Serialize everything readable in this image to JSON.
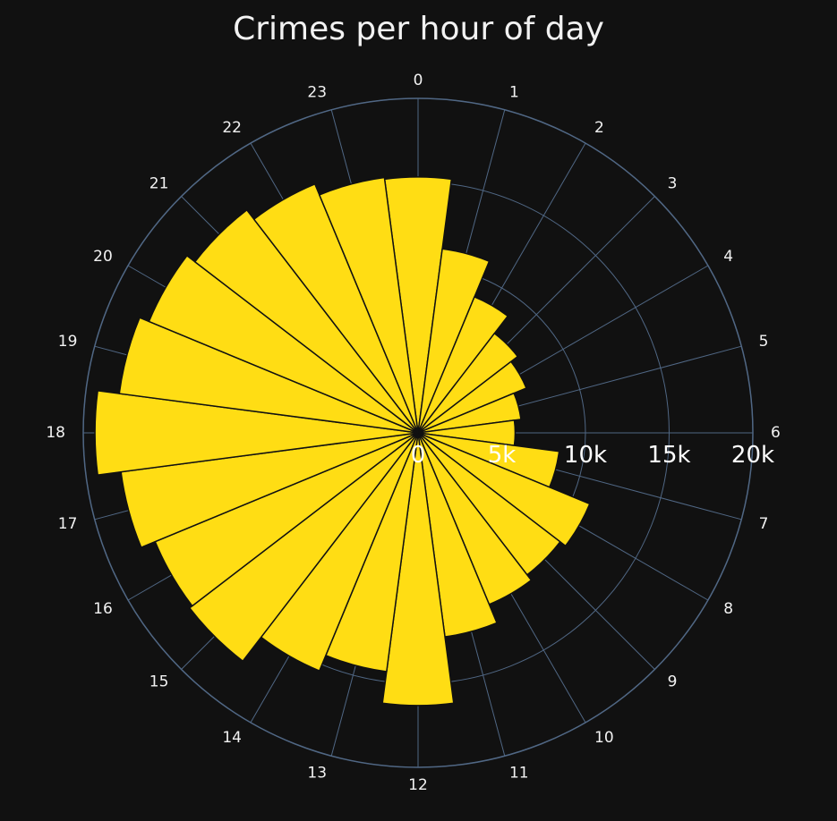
{
  "chart_data": {
    "type": "bar",
    "subtype": "polar",
    "title": "Crimes per hour of day",
    "categories": [
      "0",
      "1",
      "2",
      "3",
      "4",
      "5",
      "6",
      "7",
      "8",
      "9",
      "10",
      "11",
      "12",
      "13",
      "14",
      "15",
      "16",
      "17",
      "18",
      "19",
      "20",
      "21",
      "22",
      "23"
    ],
    "values": [
      15300,
      11100,
      8800,
      7500,
      7000,
      6200,
      5800,
      8500,
      11100,
      10700,
      11100,
      12300,
      16300,
      14400,
      15400,
      17200,
      17000,
      17900,
      19300,
      18000,
      17400,
      16800,
      16100,
      15400
    ],
    "radial_axis": {
      "range": [
        0,
        20000
      ],
      "tickvals": [
        0,
        5000,
        10000,
        15000,
        20000
      ],
      "ticktext": [
        "0",
        "5k",
        "10k",
        "15k",
        "20k"
      ]
    },
    "angular_axis": {
      "direction": "clockwise",
      "rotation": "0 at top",
      "tick_labels": [
        "0",
        "1",
        "2",
        "3",
        "4",
        "5",
        "6",
        "7",
        "8",
        "9",
        "10",
        "11",
        "12",
        "13",
        "14",
        "15",
        "16",
        "17",
        "18",
        "19",
        "20",
        "21",
        "22",
        "23"
      ]
    },
    "colors": {
      "bar": "#FFDD14",
      "background": "#111111",
      "grid": "#506784",
      "text": "#f2f2f2"
    }
  }
}
